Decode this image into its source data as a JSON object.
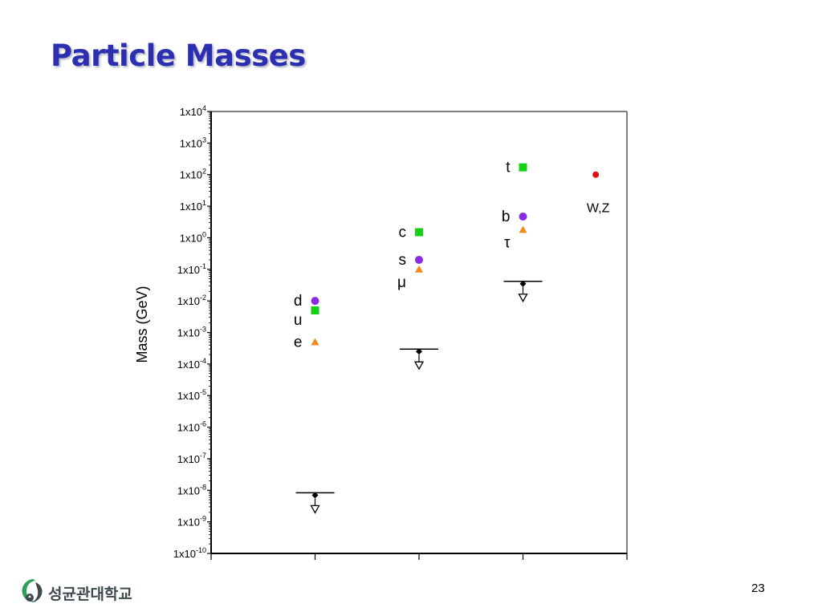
{
  "slide": {
    "title": "Particle Masses",
    "page_number": "23",
    "logo_text": "성균관대학교"
  },
  "chart_data": {
    "type": "scatter",
    "title": "",
    "ylabel": "Mass (GeV)",
    "xlabel": "",
    "yscale": "log",
    "ylim": [
      1e-10,
      10000.0
    ],
    "xlim": [
      0,
      4
    ],
    "x_ticks": [
      0,
      1,
      2,
      3,
      4
    ],
    "y_ticks": [
      {
        "exp": -10,
        "label": "1x10",
        "sup": "-10"
      },
      {
        "exp": -9,
        "label": "1x10",
        "sup": "-9"
      },
      {
        "exp": -8,
        "label": "1x10",
        "sup": "-8"
      },
      {
        "exp": -7,
        "label": "1x10",
        "sup": "-7"
      },
      {
        "exp": -6,
        "label": "1x10",
        "sup": "-6"
      },
      {
        "exp": -5,
        "label": "1x10",
        "sup": "-5"
      },
      {
        "exp": -4,
        "label": "1x10",
        "sup": "-4"
      },
      {
        "exp": -3,
        "label": "1x10",
        "sup": "-3"
      },
      {
        "exp": -2,
        "label": "1x10",
        "sup": "-2"
      },
      {
        "exp": -1,
        "label": "1x10",
        "sup": "-1"
      },
      {
        "exp": 0,
        "label": "1x10",
        "sup": "0"
      },
      {
        "exp": 1,
        "label": "1x10",
        "sup": "1"
      },
      {
        "exp": 2,
        "label": "1x10",
        "sup": "2"
      },
      {
        "exp": 3,
        "label": "1x10",
        "sup": "3"
      },
      {
        "exp": 4,
        "label": "1x10",
        "sup": "4"
      }
    ],
    "grid": false,
    "legend": "none",
    "series": [
      {
        "marker": "square",
        "color": "#16d016",
        "points": [
          {
            "label": "u",
            "x": 1,
            "y": 0.005
          },
          {
            "label": "c",
            "x": 2,
            "y": 1.5
          },
          {
            "label": "t",
            "x": 3,
            "y": 170
          }
        ]
      },
      {
        "marker": "circle",
        "color": "#8a2be2",
        "points": [
          {
            "label": "d",
            "x": 1,
            "y": 0.01
          },
          {
            "label": "s",
            "x": 2,
            "y": 0.2
          },
          {
            "label": "b",
            "x": 3,
            "y": 4.7
          }
        ]
      },
      {
        "marker": "triangle",
        "color": "#f08c1e",
        "points": [
          {
            "label": "e",
            "x": 1,
            "y": 0.0005
          },
          {
            "label": "μ",
            "x": 2,
            "y": 0.1
          },
          {
            "label": "τ",
            "x": 3,
            "y": 1.8
          }
        ]
      },
      {
        "marker": "circle",
        "color": "#dd1111",
        "points": [
          {
            "label": "W,Z",
            "x": 3.7,
            "y": 100
          }
        ]
      },
      {
        "marker": "upper-limit",
        "color": "#000000",
        "points": [
          {
            "label": "",
            "x": 1,
            "y": 7e-09
          },
          {
            "label": "",
            "x": 2,
            "y": 0.00025
          },
          {
            "label": "",
            "x": 3,
            "y": 0.035
          }
        ]
      }
    ]
  }
}
